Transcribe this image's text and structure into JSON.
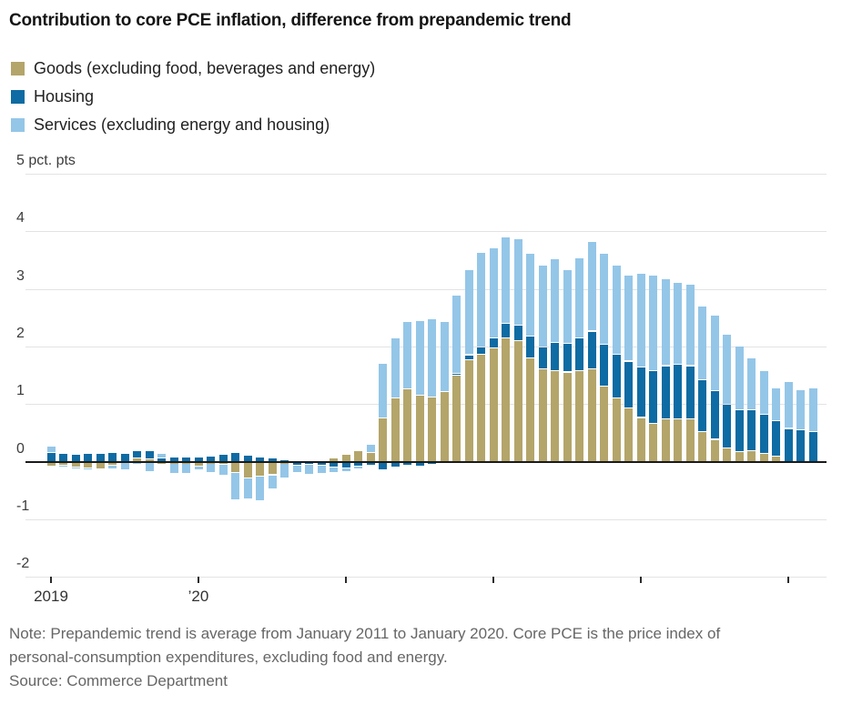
{
  "title": "Contribution to core PCE inflation, difference from prepandemic trend",
  "legend": [
    {
      "label": "Goods (excluding food, beverages and energy)",
      "key": "goods"
    },
    {
      "label": "Housing",
      "key": "housing"
    },
    {
      "label": "Services (excluding energy and housing)",
      "key": "services"
    }
  ],
  "colors": {
    "goods": "#b4a56a",
    "housing": "#0e6ba3",
    "services": "#94c6e8",
    "zero_line": "#1a1a1a",
    "gridline": "#e3e3e3",
    "tick": "#2b2b2b"
  },
  "y_axis": {
    "unit_label": "5 pct. pts",
    "ticks": [
      5,
      4,
      3,
      2,
      1,
      0,
      -1,
      -2
    ]
  },
  "x_axis": {
    "tick_month_indices": [
      0,
      12,
      24,
      36,
      48,
      60
    ],
    "labels": [
      {
        "text": "2019",
        "month_index": 0
      },
      {
        "text": "’20",
        "month_index": 12
      }
    ]
  },
  "note": "Note: Prepandemic trend is average from January 2011 to January 2020. Core PCE is the price index of personal-consumption expenditures, excluding food and energy.",
  "source": "Source: Commerce Department",
  "chart_data": {
    "type": "bar",
    "stacked": true,
    "title": "Contribution to core PCE inflation, difference from prepandemic trend",
    "ylabel": "pct. pts",
    "ylim": [
      -2,
      5
    ],
    "grid": true,
    "legend_position": "top-left",
    "x": [
      "Jan 2019",
      "Feb 2019",
      "Mar 2019",
      "Apr 2019",
      "May 2019",
      "Jun 2019",
      "Jul 2019",
      "Aug 2019",
      "Sep 2019",
      "Oct 2019",
      "Nov 2019",
      "Dec 2019",
      "Jan 2020",
      "Feb 2020",
      "Mar 2020",
      "Apr 2020",
      "May 2020",
      "Jun 2020",
      "Jul 2020",
      "Aug 2020",
      "Sep 2020",
      "Oct 2020",
      "Nov 2020",
      "Dec 2020",
      "Jan 2021",
      "Feb 2021",
      "Mar 2021",
      "Apr 2021",
      "May 2021",
      "Jun 2021",
      "Jul 2021",
      "Aug 2021",
      "Sep 2021",
      "Oct 2021",
      "Nov 2021",
      "Dec 2021",
      "Jan 2022",
      "Feb 2022",
      "Mar 2022",
      "Apr 2022",
      "May 2022",
      "Jun 2022",
      "Jul 2022",
      "Aug 2022",
      "Sep 2022",
      "Oct 2022",
      "Nov 2022",
      "Dec 2022",
      "Jan 2023",
      "Feb 2023",
      "Mar 2023",
      "Apr 2023",
      "May 2023",
      "Jun 2023",
      "Jul 2023",
      "Aug 2023",
      "Sep 2023",
      "Oct 2023",
      "Nov 2023",
      "Dec 2023",
      "Jan 2024",
      "Feb 2024",
      "Mar 2024"
    ],
    "series": [
      {
        "name": "Goods (excluding food, beverages and energy)",
        "key": "goods",
        "values": [
          -0.07,
          -0.06,
          -0.08,
          -0.1,
          -0.11,
          -0.06,
          -0.01,
          0.06,
          0.04,
          -0.02,
          -0.02,
          -0.02,
          -0.07,
          -0.02,
          -0.03,
          -0.18,
          -0.28,
          -0.25,
          -0.22,
          -0.02,
          0.0,
          0.0,
          0.0,
          0.05,
          0.12,
          0.18,
          0.15,
          0.76,
          1.1,
          1.26,
          1.14,
          1.12,
          1.21,
          1.49,
          1.77,
          1.86,
          1.97,
          2.14,
          2.1,
          1.79,
          1.6,
          1.58,
          1.55,
          1.57,
          1.6,
          1.31,
          1.1,
          0.92,
          0.76,
          0.66,
          0.73,
          0.74,
          0.74,
          0.52,
          0.38,
          0.23,
          0.17,
          0.18,
          0.14,
          0.09,
          0.0,
          0.0,
          0.0
        ]
      },
      {
        "name": "Housing",
        "key": "housing",
        "values": [
          0.15,
          0.13,
          0.12,
          0.14,
          0.13,
          0.15,
          0.13,
          0.12,
          0.14,
          0.05,
          0.07,
          0.08,
          0.07,
          0.09,
          0.12,
          0.16,
          0.1,
          0.07,
          0.05,
          0.03,
          -0.06,
          -0.04,
          -0.05,
          -0.08,
          -0.1,
          -0.07,
          -0.05,
          -0.13,
          -0.08,
          -0.05,
          -0.07,
          -0.04,
          0.0,
          0.03,
          0.08,
          0.13,
          0.17,
          0.25,
          0.26,
          0.38,
          0.38,
          0.49,
          0.5,
          0.58,
          0.66,
          0.72,
          0.76,
          0.82,
          0.87,
          0.92,
          0.93,
          0.94,
          0.92,
          0.89,
          0.85,
          0.76,
          0.73,
          0.71,
          0.68,
          0.62,
          0.57,
          0.55,
          0.51
        ]
      },
      {
        "name": "Services (excluding energy and housing)",
        "key": "services",
        "values": [
          0.11,
          -0.03,
          -0.02,
          -0.02,
          0.0,
          -0.06,
          -0.12,
          -0.04,
          -0.16,
          0.08,
          -0.17,
          -0.18,
          -0.06,
          -0.16,
          -0.2,
          -0.47,
          -0.36,
          -0.42,
          -0.25,
          -0.25,
          -0.12,
          -0.18,
          -0.15,
          -0.1,
          -0.07,
          -0.05,
          0.15,
          0.94,
          1.05,
          1.16,
          1.31,
          1.35,
          1.21,
          1.37,
          1.47,
          1.64,
          1.56,
          1.51,
          1.51,
          1.45,
          1.42,
          1.45,
          1.27,
          1.39,
          1.55,
          1.59,
          1.55,
          1.5,
          1.64,
          1.66,
          1.51,
          1.43,
          1.42,
          1.29,
          1.31,
          1.21,
          1.1,
          0.91,
          0.76,
          0.57,
          0.81,
          0.7,
          0.76
        ]
      }
    ]
  }
}
